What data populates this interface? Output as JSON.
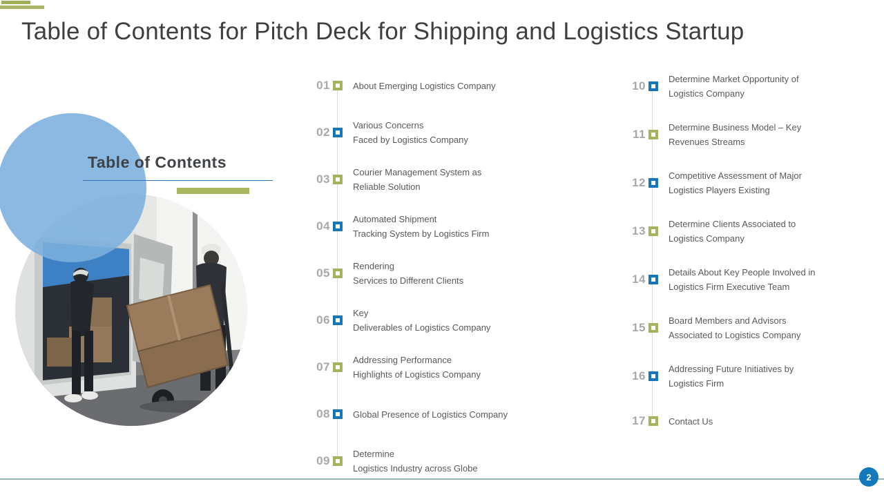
{
  "slide": {
    "title": "Table of Contents for Pitch Deck for Shipping and Logistics Startup",
    "section_heading": "Table of Contents",
    "page_number": "2"
  },
  "colors": {
    "olive_green": "#a3b45e",
    "marker_blue": "#1577b8",
    "light_blue_circle": "#7bafdd",
    "title_text": "#3f3f3f",
    "item_text": "#595959",
    "number_gray": "#a8a8a8",
    "underline_blue": "#2e74b5",
    "bottom_line": "#7fa6b1",
    "page_badge_blue": "#1478bd"
  },
  "image": {
    "description": "Circular photo of two delivery workers unloading cardboard boxes from a white van with a hand truck"
  },
  "toc": {
    "left_items": [
      {
        "num": "01",
        "color": "green",
        "lines": [
          "About Emerging Logistics Company"
        ]
      },
      {
        "num": "02",
        "color": "blue",
        "lines": [
          "Various Concerns",
          "Faced by Logistics Company"
        ]
      },
      {
        "num": "03",
        "color": "green",
        "lines": [
          "Courier Management System as",
          "Reliable Solution"
        ]
      },
      {
        "num": "04",
        "color": "blue",
        "lines": [
          "Automated Shipment",
          "Tracking System by Logistics Firm"
        ]
      },
      {
        "num": "05",
        "color": "green",
        "lines": [
          "Rendering",
          "Services to Different Clients"
        ]
      },
      {
        "num": "06",
        "color": "blue",
        "lines": [
          "Key",
          "Deliverables of Logistics Company"
        ]
      },
      {
        "num": "07",
        "color": "green",
        "lines": [
          "Addressing Performance",
          "Highlights of Logistics Company"
        ]
      },
      {
        "num": "08",
        "color": "blue",
        "lines": [
          "Global Presence of Logistics Company"
        ]
      },
      {
        "num": "09",
        "color": "green",
        "lines": [
          "Determine",
          "Logistics Industry across Globe"
        ]
      }
    ],
    "right_items": [
      {
        "num": "10",
        "color": "blue",
        "lines": [
          "Determine Market Opportunity of",
          "Logistics Company"
        ]
      },
      {
        "num": "11",
        "color": "green",
        "lines": [
          "Determine Business Model – Key",
          "Revenues Streams"
        ]
      },
      {
        "num": "12",
        "color": "blue",
        "lines": [
          "Competitive Assessment of Major",
          "Logistics Players Existing"
        ]
      },
      {
        "num": "13",
        "color": "green",
        "lines": [
          "Determine Clients Associated to",
          "Logistics Company"
        ]
      },
      {
        "num": "14",
        "color": "blue",
        "lines": [
          "Details About Key People Involved in",
          "Logistics Firm Executive Team"
        ]
      },
      {
        "num": "15",
        "color": "green",
        "lines": [
          "Board Members and Advisors",
          "Associated to Logistics Company"
        ]
      },
      {
        "num": "16",
        "color": "blue",
        "lines": [
          "Addressing Future Initiatives by",
          "Logistics Firm"
        ]
      },
      {
        "num": "17",
        "color": "green",
        "lines": [
          "Contact Us"
        ]
      }
    ]
  }
}
